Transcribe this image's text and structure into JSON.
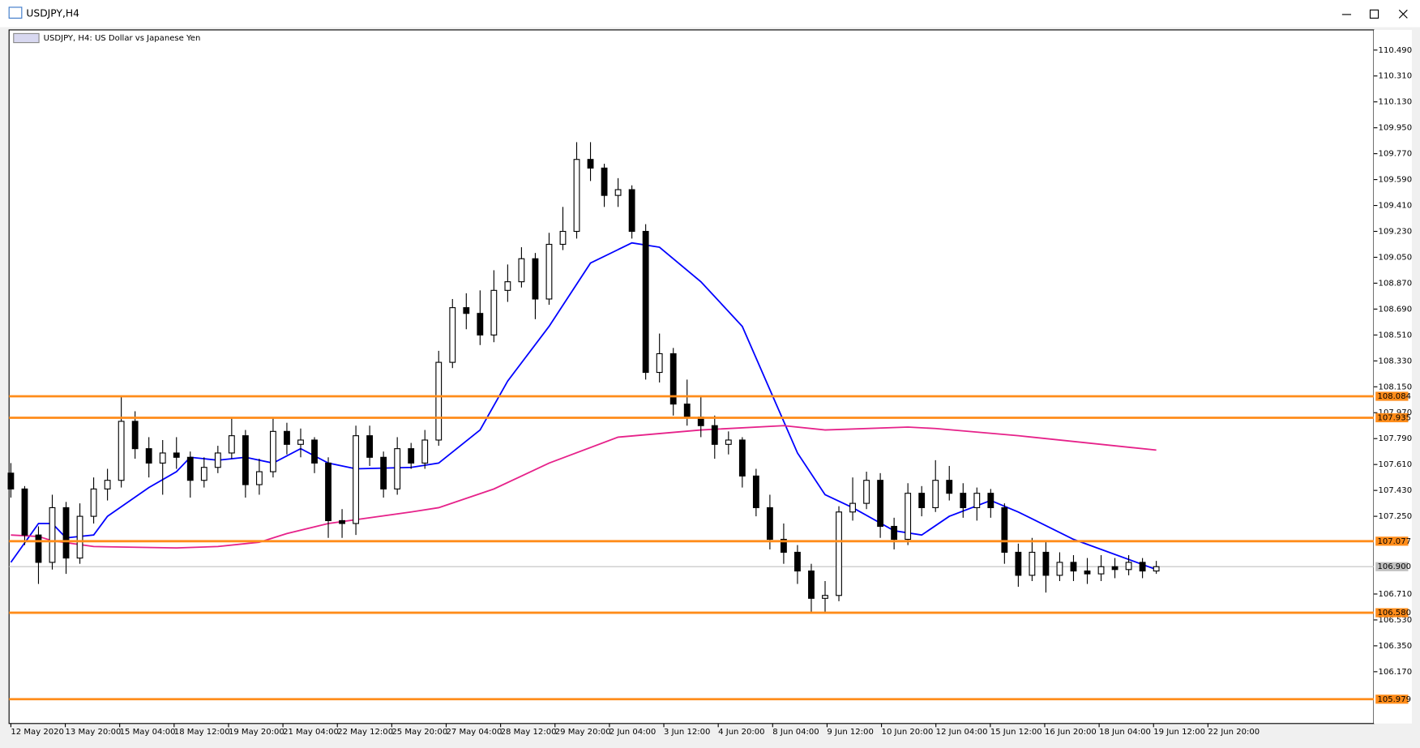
{
  "window_title": "USDJPY,H4",
  "chart_data": {
    "type": "candlestick",
    "title": "USDJPY, H4:  US Dollar vs Japanese Yen",
    "ohlc": [
      [
        107.55,
        107.62,
        107.38,
        107.44
      ],
      [
        107.44,
        107.46,
        107.05,
        107.12
      ],
      [
        107.12,
        107.18,
        106.78,
        106.93
      ],
      [
        106.93,
        107.4,
        106.88,
        107.31
      ],
      [
        107.31,
        107.35,
        106.85,
        106.96
      ],
      [
        106.96,
        107.34,
        106.92,
        107.25
      ],
      [
        107.25,
        107.52,
        107.2,
        107.44
      ],
      [
        107.44,
        107.58,
        107.36,
        107.5
      ],
      [
        107.5,
        108.08,
        107.45,
        107.91
      ],
      [
        107.91,
        107.98,
        107.65,
        107.72
      ],
      [
        107.72,
        107.8,
        107.52,
        107.62
      ],
      [
        107.62,
        107.78,
        107.4,
        107.69
      ],
      [
        107.69,
        107.8,
        107.58,
        107.66
      ],
      [
        107.66,
        107.7,
        107.38,
        107.5
      ],
      [
        107.5,
        107.66,
        107.45,
        107.59
      ],
      [
        107.59,
        107.74,
        107.55,
        107.69
      ],
      [
        107.69,
        107.93,
        107.65,
        107.81
      ],
      [
        107.81,
        107.85,
        107.38,
        107.47
      ],
      [
        107.47,
        107.65,
        107.4,
        107.56
      ],
      [
        107.56,
        107.93,
        107.52,
        107.84
      ],
      [
        107.84,
        107.9,
        107.68,
        107.75
      ],
      [
        107.75,
        107.86,
        107.66,
        107.78
      ],
      [
        107.78,
        107.8,
        107.55,
        107.62
      ],
      [
        107.62,
        107.66,
        107.1,
        107.22
      ],
      [
        107.22,
        107.3,
        107.1,
        107.2
      ],
      [
        107.2,
        107.88,
        107.12,
        107.81
      ],
      [
        107.81,
        107.88,
        107.6,
        107.66
      ],
      [
        107.66,
        107.7,
        107.38,
        107.44
      ],
      [
        107.44,
        107.8,
        107.4,
        107.72
      ],
      [
        107.72,
        107.76,
        107.58,
        107.62
      ],
      [
        107.62,
        107.85,
        107.58,
        107.78
      ],
      [
        107.78,
        108.4,
        107.74,
        108.32
      ],
      [
        108.32,
        108.76,
        108.28,
        108.7
      ],
      [
        108.7,
        108.8,
        108.55,
        108.66
      ],
      [
        108.66,
        108.82,
        108.44,
        108.51
      ],
      [
        108.51,
        108.96,
        108.46,
        108.82
      ],
      [
        108.82,
        109.0,
        108.74,
        108.88
      ],
      [
        108.88,
        109.12,
        108.84,
        109.04
      ],
      [
        109.04,
        109.08,
        108.62,
        108.76
      ],
      [
        108.76,
        109.22,
        108.72,
        109.14
      ],
      [
        109.14,
        109.4,
        109.1,
        109.23
      ],
      [
        109.23,
        109.85,
        109.18,
        109.73
      ],
      [
        109.73,
        109.85,
        109.58,
        109.67
      ],
      [
        109.67,
        109.7,
        109.4,
        109.48
      ],
      [
        109.48,
        109.6,
        109.4,
        109.52
      ],
      [
        109.52,
        109.55,
        109.18,
        109.23
      ],
      [
        109.23,
        109.28,
        108.2,
        108.25
      ],
      [
        108.25,
        108.52,
        108.18,
        108.38
      ],
      [
        108.38,
        108.42,
        107.95,
        108.03
      ],
      [
        108.03,
        108.2,
        107.88,
        107.94
      ],
      [
        107.94,
        108.08,
        107.8,
        107.88
      ],
      [
        107.88,
        107.95,
        107.65,
        107.75
      ],
      [
        107.75,
        107.84,
        107.68,
        107.78
      ],
      [
        107.78,
        107.8,
        107.45,
        107.53
      ],
      [
        107.53,
        107.58,
        107.25,
        107.31
      ],
      [
        107.31,
        107.4,
        107.02,
        107.09
      ],
      [
        107.09,
        107.2,
        106.92,
        107.0
      ],
      [
        107.0,
        107.05,
        106.78,
        106.87
      ],
      [
        106.87,
        106.92,
        106.58,
        106.68
      ],
      [
        106.68,
        106.8,
        106.58,
        106.7
      ],
      [
        106.7,
        107.32,
        106.66,
        107.28
      ],
      [
        107.28,
        107.52,
        107.22,
        107.34
      ],
      [
        107.34,
        107.56,
        107.3,
        107.5
      ],
      [
        107.5,
        107.55,
        107.1,
        107.18
      ],
      [
        107.18,
        107.24,
        107.02,
        107.09
      ],
      [
        107.09,
        107.48,
        107.05,
        107.41
      ],
      [
        107.41,
        107.46,
        107.25,
        107.31
      ],
      [
        107.31,
        107.64,
        107.28,
        107.5
      ],
      [
        107.5,
        107.6,
        107.36,
        107.41
      ],
      [
        107.41,
        107.48,
        107.24,
        107.31
      ],
      [
        107.31,
        107.45,
        107.22,
        107.41
      ],
      [
        107.41,
        107.44,
        107.24,
        107.31
      ],
      [
        107.31,
        107.34,
        106.92,
        107.0
      ],
      [
        107.0,
        107.06,
        106.76,
        106.84
      ],
      [
        106.84,
        107.1,
        106.8,
        107.0
      ],
      [
        107.0,
        107.08,
        106.72,
        106.84
      ],
      [
        106.84,
        107.0,
        106.8,
        106.93
      ],
      [
        106.93,
        106.98,
        106.8,
        106.87
      ],
      [
        106.87,
        106.96,
        106.78,
        106.85
      ],
      [
        106.85,
        106.98,
        106.8,
        106.9
      ],
      [
        106.9,
        106.96,
        106.82,
        106.88
      ],
      [
        106.88,
        106.98,
        106.84,
        106.93
      ],
      [
        106.93,
        106.96,
        106.82,
        106.87
      ],
      [
        106.87,
        106.94,
        106.85,
        106.9
      ]
    ],
    "lines": [
      {
        "color": "#0000ff",
        "x": [
          0,
          2,
          3,
          4,
          6,
          7,
          10,
          12,
          13,
          15,
          17,
          19,
          21,
          23,
          25,
          29,
          31,
          34,
          36,
          39,
          42,
          45,
          47,
          50,
          53,
          55,
          57,
          59,
          61,
          64,
          66,
          68,
          71,
          73,
          77,
          83
        ],
        "values": [
          106.93,
          107.2,
          107.2,
          107.1,
          107.12,
          107.25,
          107.45,
          107.56,
          107.66,
          107.64,
          107.66,
          107.62,
          107.72,
          107.62,
          107.58,
          107.59,
          107.62,
          107.85,
          108.19,
          108.57,
          109.01,
          109.15,
          109.12,
          108.88,
          108.57,
          108.13,
          107.69,
          107.4,
          107.31,
          107.15,
          107.12,
          107.25,
          107.36,
          107.28,
          107.09,
          106.88
        ]
      },
      {
        "color": "#e6228a",
        "x": [
          0,
          2,
          3,
          6,
          12,
          15,
          18,
          20,
          23,
          29,
          31,
          35,
          39,
          44,
          50,
          56,
          59,
          65,
          67,
          73,
          83
        ],
        "values": [
          107.12,
          107.11,
          107.08,
          107.04,
          107.03,
          107.04,
          107.07,
          107.13,
          107.2,
          107.28,
          107.31,
          107.44,
          107.62,
          107.8,
          107.85,
          107.88,
          107.85,
          107.87,
          107.86,
          107.81,
          107.71
        ]
      }
    ],
    "levels": [
      108.084,
      107.935,
      107.077,
      {
        "value": 106.58,
        "label": "106.580"
      },
      105.979
    ],
    "level_color": "#ff8c1a",
    "current_price": {
      "value": 106.9,
      "label": "106.900"
    },
    "ylim": [
      105.81,
      110.63
    ],
    "yticks": [
      {
        "value": 110.49,
        "label": "110.490"
      },
      {
        "value": 110.31,
        "label": "110.310"
      },
      {
        "value": 110.13,
        "label": "110.130"
      },
      {
        "value": 109.95,
        "label": "109.950"
      },
      {
        "value": 109.77,
        "label": "109.770"
      },
      {
        "value": 109.59,
        "label": "109.590"
      },
      {
        "value": 109.41,
        "label": "109.410"
      },
      {
        "value": 109.23,
        "label": "109.230"
      },
      {
        "value": 109.05,
        "label": "109.050"
      },
      {
        "value": 108.87,
        "label": "108.870"
      },
      {
        "value": 108.69,
        "label": "108.690"
      },
      {
        "value": 108.51,
        "label": "108.510"
      },
      {
        "value": 108.33,
        "label": "108.330"
      },
      {
        "value": 108.15,
        "label": "108.150"
      },
      {
        "value": 107.97,
        "label": "107.970"
      },
      {
        "value": 107.79,
        "label": "107.790"
      },
      {
        "value": 107.61,
        "label": "107.610"
      },
      {
        "value": 107.43,
        "label": "107.430"
      },
      {
        "value": 107.25,
        "label": "107.250"
      },
      {
        "value": 106.71,
        "label": "106.710"
      },
      {
        "value": 106.53,
        "label": "106.530"
      },
      {
        "value": 106.35,
        "label": "106.350"
      },
      {
        "value": 106.17,
        "label": "106.170"
      }
    ],
    "x_labels": [
      "12 May 2020",
      "13 May 20:00",
      "15 May 04:00",
      "18 May 12:00",
      "19 May 20:00",
      "21 May 04:00",
      "22 May 12:00",
      "25 May 20:00",
      "27 May 04:00",
      "28 May 12:00",
      "29 May 20:00",
      "2 Jun 04:00",
      "3 Jun 12:00",
      "4 Jun 20:00",
      "8 Jun 04:00",
      "9 Jun 12:00",
      "10 Jun 20:00",
      "12 Jun 04:00",
      "15 Jun 12:00",
      "16 Jun 20:00",
      "18 Jun 04:00",
      "19 Jun 12:00",
      "22 Jun 20:00"
    ]
  }
}
